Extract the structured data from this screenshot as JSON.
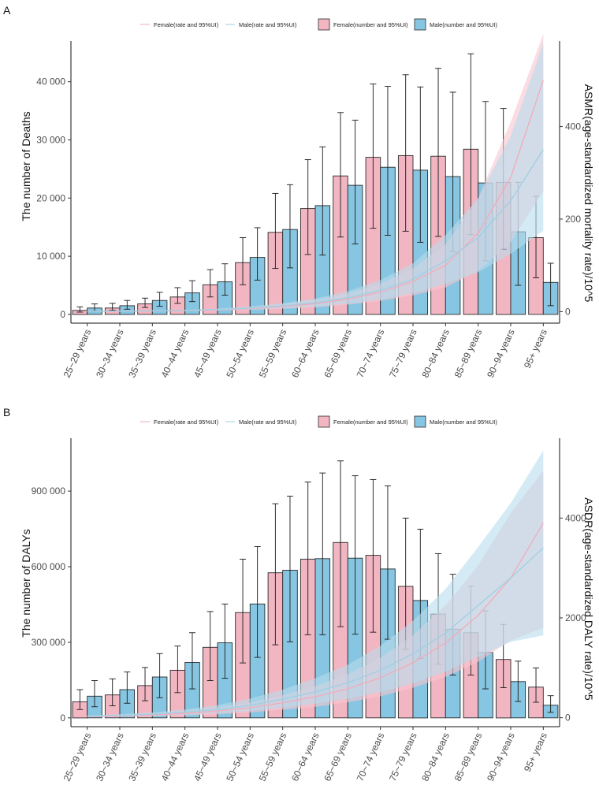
{
  "colors": {
    "female_bar": "#f2b6c2",
    "male_bar": "#87c6e2",
    "female_band": "#f8c4cf",
    "male_band": "#b7dcec",
    "female_line": "#f4aab9",
    "male_line": "#9fcfe3",
    "bar_stroke": "#2b2b2b"
  },
  "chart_data": [
    {
      "panel": "A",
      "type": "bar",
      "categories": [
        "25~29 years",
        "30~34 years",
        "35~39 years",
        "40~44 years",
        "45~49 years",
        "50~54 years",
        "55~59 years",
        "60~64 years",
        "65~69 years",
        "70~74 years",
        "75~79 years",
        "80~84 years",
        "85~89 years",
        "90~94 years",
        "95+ years"
      ],
      "ylabel": "The number of Deaths",
      "ylabel2": "ASMR(age-standardized mortality rate)/10^5",
      "ylim": [
        -1500,
        47000
      ],
      "yticks": [
        0,
        10000,
        20000,
        30000,
        40000
      ],
      "ytick_labels": [
        "0",
        "10 000",
        "20 000",
        "30 000",
        "40 000"
      ],
      "y2lim": [
        -25,
        585
      ],
      "y2ticks": [
        0,
        200,
        400
      ],
      "y2tick_labels": [
        "0",
        "200",
        "400"
      ],
      "series": [
        {
          "name": "Female(number and 95%UI)",
          "values": [
            700,
            1100,
            1800,
            3000,
            5100,
            8900,
            14100,
            18200,
            23800,
            27000,
            27300,
            27200,
            28400,
            22700,
            13200
          ],
          "lower": [
            400,
            700,
            1200,
            1900,
            3000,
            5100,
            7900,
            10300,
            13300,
            14800,
            14300,
            13400,
            13700,
            11200,
            6300
          ],
          "upper": [
            1300,
            1900,
            2800,
            4600,
            7700,
            13200,
            20800,
            26600,
            34700,
            39600,
            41200,
            42300,
            44800,
            35400,
            20300
          ]
        },
        {
          "name": "Male(number and 95%UI)",
          "values": [
            1100,
            1500,
            2400,
            3700,
            5600,
            9800,
            14600,
            18700,
            22200,
            25300,
            24800,
            23700,
            22600,
            14200,
            5500
          ],
          "lower": [
            600,
            900,
            1400,
            2200,
            3300,
            5900,
            8000,
            10200,
            12100,
            13600,
            12400,
            10800,
            9200,
            5000,
            1500
          ],
          "upper": [
            1800,
            2400,
            3800,
            5800,
            8700,
            14900,
            22300,
            28800,
            33400,
            39200,
            39100,
            38200,
            36600,
            22700,
            8800
          ]
        }
      ],
      "rate_series": [
        {
          "name": "Female(rate and 95%UI)",
          "values": [
            0.5,
            0.8,
            1.3,
            2.2,
            3.8,
            6.5,
            11,
            17,
            27,
            42,
            65,
            100,
            170,
            290,
            500
          ],
          "lower": [
            0.3,
            0.5,
            0.8,
            1.3,
            2.2,
            3.8,
            6,
            9,
            15,
            23,
            35,
            52,
            88,
            150,
            260
          ],
          "upper": [
            0.8,
            1.2,
            1.9,
            3.3,
            5.6,
            9.5,
            16,
            25,
            39,
            60,
            94,
            145,
            245,
            410,
            600
          ]
        },
        {
          "name": "Male(rate and 95%UI)",
          "values": [
            0.8,
            1.1,
            1.6,
            2.6,
            4.5,
            7.5,
            12.5,
            19,
            30,
            46,
            70,
            110,
            160,
            240,
            350
          ],
          "lower": [
            0.5,
            0.7,
            1.0,
            1.6,
            2.7,
            4.5,
            7.5,
            11,
            17,
            26,
            39,
            60,
            85,
            125,
            175
          ],
          "upper": [
            1.1,
            1.6,
            2.3,
            3.8,
            6.5,
            11,
            18,
            28,
            44,
            68,
            104,
            165,
            245,
            380,
            580
          ]
        }
      ]
    },
    {
      "panel": "B",
      "type": "bar",
      "categories": [
        "25~29 years",
        "30~34 years",
        "35~39 years",
        "40~44 years",
        "45~49 years",
        "50~54 years",
        "55~59 years",
        "60~64 years",
        "65~69 years",
        "70~74 years",
        "75~79 years",
        "80~84 years",
        "85~89 years",
        "90~94 years",
        "95+ years"
      ],
      "ylabel": "The number of DALYs",
      "ylabel2": "ASDR(age-standardized DALY rate)/10^5",
      "ylim": [
        -35000,
        1110000
      ],
      "yticks": [
        0,
        300000,
        600000,
        900000
      ],
      "ytick_labels": [
        "0",
        "300 000",
        "600 000",
        "900 000"
      ],
      "y2lim": [
        -180,
        5600
      ],
      "y2ticks": [
        0,
        2000,
        4000
      ],
      "y2tick_labels": [
        "0",
        "2000",
        "4000"
      ],
      "series": [
        {
          "name": "Female(number and 95%UI)",
          "values": [
            64000,
            91000,
            128000,
            189000,
            280000,
            418000,
            576000,
            630000,
            696000,
            645000,
            522000,
            412000,
            338000,
            232000,
            122000
          ],
          "lower": [
            33000,
            48000,
            68000,
            100000,
            148000,
            218000,
            290000,
            330000,
            362000,
            340000,
            272000,
            213000,
            170000,
            120000,
            62000
          ],
          "upper": [
            112000,
            155000,
            200000,
            285000,
            422000,
            630000,
            850000,
            936000,
            1020000,
            946000,
            793000,
            652000,
            522000,
            371000,
            198000
          ]
        },
        {
          "name": "Male(number and 95%UI)",
          "values": [
            86000,
            112000,
            162000,
            220000,
            298000,
            452000,
            586000,
            632000,
            634000,
            591000,
            466000,
            352000,
            260000,
            144000,
            50000
          ],
          "lower": [
            44000,
            58000,
            80000,
            115000,
            157000,
            240000,
            302000,
            330000,
            332000,
            312000,
            236000,
            170000,
            115000,
            65000,
            22000
          ],
          "upper": [
            148000,
            182000,
            255000,
            338000,
            452000,
            680000,
            880000,
            972000,
            961000,
            921000,
            749000,
            570000,
            425000,
            225000,
            88000
          ]
        }
      ],
      "rate_series": [
        {
          "name": "Female(rate and 95%UI)",
          "values": [
            20,
            35,
            55,
            85,
            135,
            200,
            300,
            420,
            580,
            800,
            1100,
            1500,
            2050,
            2800,
            3900
          ],
          "lower": [
            10,
            18,
            28,
            45,
            70,
            105,
            160,
            220,
            310,
            430,
            600,
            820,
            1120,
            1550,
            1800
          ],
          "upper": [
            30,
            55,
            85,
            130,
            205,
            300,
            450,
            630,
            870,
            1200,
            1650,
            2250,
            3050,
            4100,
            4950
          ]
        },
        {
          "name": "Male(rate and 95%UI)",
          "values": [
            30,
            45,
            70,
            110,
            165,
            250,
            370,
            520,
            700,
            950,
            1280,
            1700,
            2250,
            2800,
            3400
          ],
          "lower": [
            15,
            25,
            40,
            60,
            90,
            135,
            200,
            280,
            380,
            510,
            690,
            920,
            1220,
            1520,
            1650
          ],
          "upper": [
            45,
            68,
            105,
            165,
            250,
            380,
            560,
            790,
            1060,
            1440,
            1940,
            2580,
            3420,
            4300,
            5350
          ]
        }
      ]
    }
  ]
}
